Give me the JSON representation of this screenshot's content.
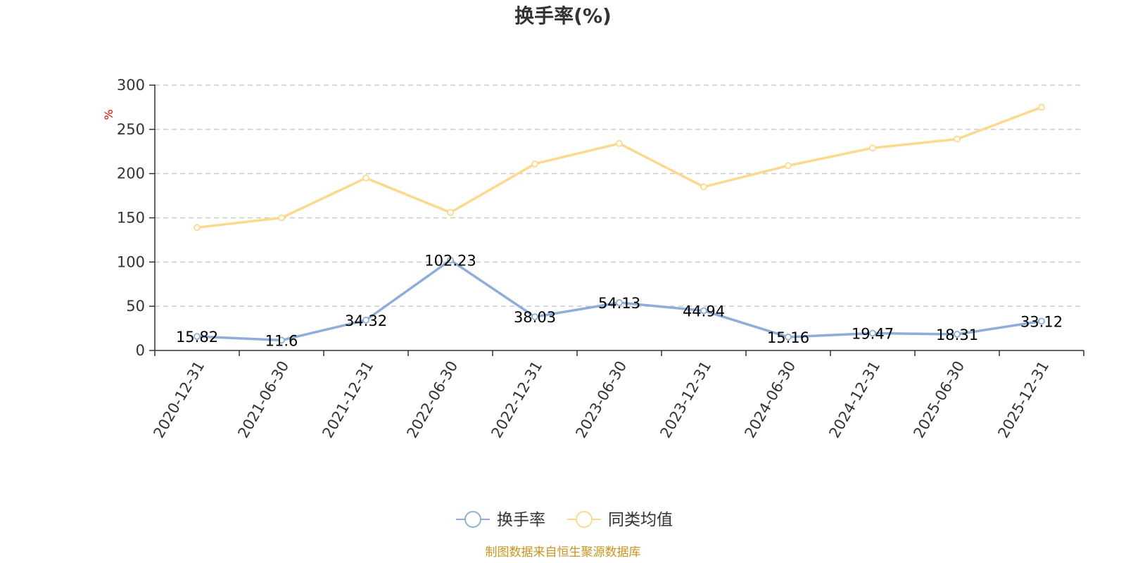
{
  "chart_data": {
    "type": "line",
    "title": "换手率(%)",
    "ylabel": "%",
    "ylim": [
      0,
      300
    ],
    "yticks": [
      0,
      50,
      100,
      150,
      200,
      250,
      300
    ],
    "grid": true,
    "legend_position": "bottom-center",
    "categories": [
      "2020-12-31",
      "2021-06-30",
      "2021-12-31",
      "2022-06-30",
      "2022-12-31",
      "2023-06-30",
      "2023-12-31",
      "2024-06-30",
      "2024-12-31",
      "2025-06-30",
      "2025-12-31"
    ],
    "series": [
      {
        "name": "换手率",
        "color": "#8eadd8",
        "show_labels": true,
        "values": [
          15.82,
          11.6,
          34.32,
          102.23,
          38.03,
          54.13,
          44.94,
          15.16,
          19.47,
          18.31,
          33.12
        ]
      },
      {
        "name": "同类均值",
        "color": "#fcd98f",
        "show_labels": false,
        "values": [
          139,
          150,
          195,
          156,
          211,
          234,
          185,
          209,
          229,
          239,
          275
        ]
      }
    ]
  },
  "source": "制图数据来自恒生聚源数据库"
}
